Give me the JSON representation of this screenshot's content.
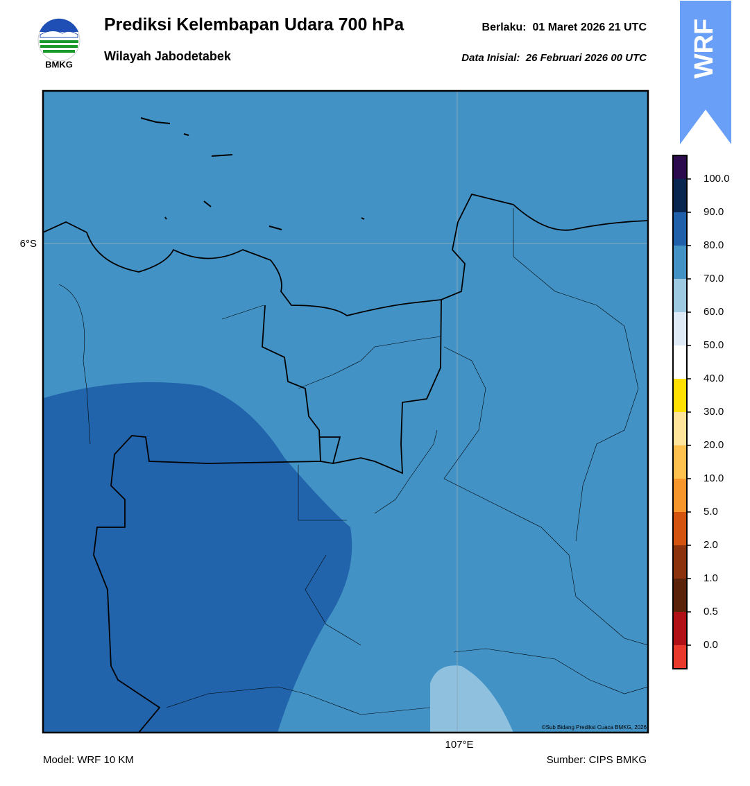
{
  "logo": {
    "text": "BMKG"
  },
  "header": {
    "title": "Prediksi Kelembapan Udara 700 hPa",
    "subtitle": "Wilayah Jabodetabek",
    "valid": "Berlaku:  01 Maret 2026 21 UTC",
    "init": "Data Inisial:  26 Februari 2026 00 UTC"
  },
  "badge": "WRF",
  "map": {
    "lat_label": "6°S",
    "lon_label": "107°E",
    "credit": "©Sub Bidang Prediksi Cuaca BMKG, 2026"
  },
  "colorbar": {
    "labels": [
      "100.0",
      "90.0",
      "80.0",
      "70.0",
      "60.0",
      "50.0",
      "40.0",
      "30.0",
      "20.0",
      "10.0",
      "5.0",
      "2.0",
      "1.0",
      "0.5",
      "0.0"
    ],
    "colors": [
      "#2b0b4e",
      "#08264f",
      "#2060aa",
      "#4292c6",
      "#9ecae1",
      "#deebf7",
      "#ffffff",
      "#ffe000",
      "#ffe49c",
      "#ffc24f",
      "#f7962a",
      "#d4530e",
      "#8c320c",
      "#5a2208",
      "#b01016",
      "#e8392c"
    ]
  },
  "footer": {
    "model": "Model: WRF 10 KM",
    "source": "Sumber: CIPS BMKG"
  }
}
